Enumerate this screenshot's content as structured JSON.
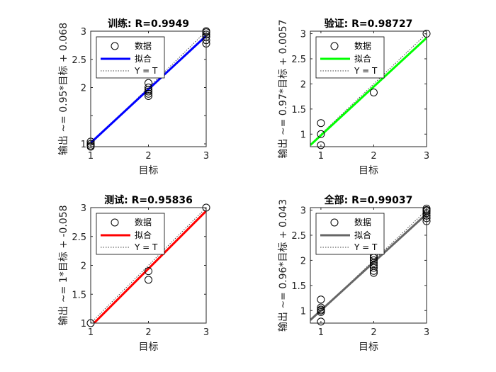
{
  "window": {
    "background": "#ffffff"
  },
  "chart_data": [
    {
      "type": "scatter",
      "title": "训练: R=0.9949",
      "xlabel": "目标",
      "ylabel": "输出 ~= 0.95*目标 + 0.068",
      "xlim": [
        1,
        3
      ],
      "ylim": [
        0.95,
        3.0
      ],
      "xticks": [
        1,
        2,
        3
      ],
      "yticks": [
        1,
        1.5,
        2,
        2.5,
        3
      ],
      "yticklabels": [
        "1",
        "",
        "2",
        "2.5",
        "3"
      ],
      "fit": {
        "slope": 0.95,
        "intercept": 0.068,
        "color": "#0000ff"
      },
      "points": [
        [
          1,
          1.04
        ],
        [
          1,
          1.0
        ],
        [
          1,
          0.97
        ],
        [
          1,
          0.95
        ],
        [
          2,
          2.08
        ],
        [
          2,
          2.0
        ],
        [
          2,
          1.96
        ],
        [
          2,
          1.93
        ],
        [
          2,
          1.89
        ],
        [
          2,
          1.85
        ],
        [
          3,
          3.0
        ],
        [
          3,
          2.98
        ],
        [
          3,
          2.94
        ],
        [
          3,
          2.9
        ],
        [
          3,
          2.84
        ],
        [
          3,
          2.78
        ]
      ],
      "legend": {
        "position": "top-left",
        "entries": [
          "数据",
          "拟合",
          "Y = T"
        ]
      }
    },
    {
      "type": "scatter",
      "title": "验证: R=0.98727",
      "xlabel": "目标",
      "ylabel": "输出 ~= 0.97*目标 + 0.0057",
      "xlim": [
        0.8,
        3.0
      ],
      "ylim": [
        0.75,
        3.05
      ],
      "xticks": [
        1,
        2,
        3
      ],
      "yticks": [
        1,
        1.5,
        2,
        2.5,
        3
      ],
      "yticklabels": [
        "1",
        "1.5",
        "2",
        "2.5",
        "3"
      ],
      "fit": {
        "slope": 0.97,
        "intercept": 0.0057,
        "color": "#00ff00"
      },
      "points": [
        [
          1,
          1.22
        ],
        [
          1,
          1.0
        ],
        [
          1,
          0.78
        ],
        [
          2,
          1.83
        ],
        [
          3,
          3.0
        ]
      ],
      "legend": {
        "position": "top-left",
        "entries": [
          "数据",
          "拟合",
          "Y = T"
        ]
      }
    },
    {
      "type": "scatter",
      "title": "测试: R=0.95836",
      "xlabel": "目标",
      "ylabel": "输出 ~= 1*目标 + -0.058",
      "xlim": [
        1,
        3
      ],
      "ylim": [
        1,
        3
      ],
      "xticks": [
        1,
        2,
        3
      ],
      "yticks": [
        1,
        1.5,
        2,
        2.5,
        3
      ],
      "yticklabels": [
        "1",
        "1.5",
        "2",
        "2.5",
        "3"
      ],
      "fit": {
        "slope": 1,
        "intercept": -0.058,
        "color": "#ff0000"
      },
      "points": [
        [
          1,
          1.0
        ],
        [
          2,
          1.9
        ],
        [
          2,
          1.75
        ],
        [
          3,
          3.0
        ]
      ],
      "legend": {
        "position": "top-left",
        "entries": [
          "数据",
          "拟合",
          "Y = T"
        ]
      }
    },
    {
      "type": "scatter",
      "title": "全部: R=0.99037",
      "xlabel": "目标",
      "ylabel": "输出 ~= 0.96*目标 + 0.043",
      "xlim": [
        0.8,
        3.0
      ],
      "ylim": [
        0.75,
        3.05
      ],
      "xticks": [
        1,
        2,
        3
      ],
      "yticks": [
        1,
        1.5,
        2,
        2.5,
        3
      ],
      "yticklabels": [
        "1",
        "1.5",
        "2",
        "2.5",
        "3"
      ],
      "fit": {
        "slope": 0.96,
        "intercept": 0.043,
        "color": "#666666"
      },
      "points": [
        [
          1,
          1.22
        ],
        [
          1,
          1.06
        ],
        [
          1,
          1.02
        ],
        [
          1,
          1.0
        ],
        [
          1,
          0.97
        ],
        [
          1,
          0.78
        ],
        [
          2,
          2.1
        ],
        [
          2,
          2.05
        ],
        [
          2,
          2.0
        ],
        [
          2,
          1.95
        ],
        [
          2,
          1.9
        ],
        [
          2,
          1.85
        ],
        [
          2,
          1.79
        ],
        [
          2,
          1.75
        ],
        [
          3,
          3.03
        ],
        [
          3,
          3.0
        ],
        [
          3,
          2.98
        ],
        [
          3,
          2.94
        ],
        [
          3,
          2.89
        ],
        [
          3,
          2.84
        ],
        [
          3,
          2.78
        ]
      ],
      "legend": {
        "position": "top-left",
        "entries": [
          "数据",
          "拟合",
          "Y = T"
        ]
      }
    }
  ]
}
